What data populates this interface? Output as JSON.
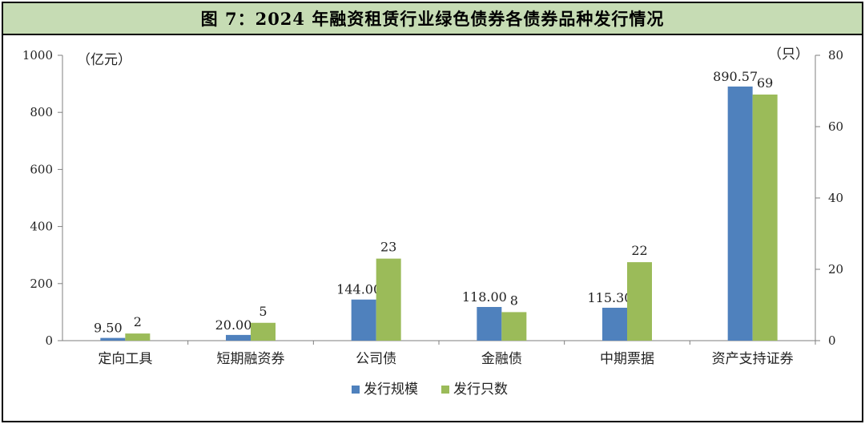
{
  "title": "图 7：2024 年融资租赁行业绿色债券各债券品种发行情况",
  "chart_data": {
    "type": "bar",
    "title": "图 7：2024 年融资租赁行业绿色债券各债券品种发行情况",
    "categories": [
      "定向工具",
      "短期融资券",
      "公司债",
      "金融债",
      "中期票据",
      "资产支持证券"
    ],
    "y_left": {
      "unit": "（亿元）",
      "min": 0,
      "max": 1000,
      "ticks": [
        0,
        200,
        400,
        600,
        800,
        1000
      ]
    },
    "y_right": {
      "unit": "（只）",
      "min": 0,
      "max": 80,
      "ticks": [
        0,
        20,
        40,
        60,
        80
      ]
    },
    "series": [
      {
        "name": "发行规模",
        "axis": "left",
        "color": "#4f81bd",
        "values": [
          9.5,
          20.0,
          144.0,
          118.0,
          115.3,
          890.57
        ],
        "labels": [
          "9.50",
          "20.00",
          "144.00",
          "118.00",
          "115.30",
          "890.57"
        ]
      },
      {
        "name": "发行只数",
        "axis": "right",
        "color": "#9bbb59",
        "values": [
          2,
          5,
          23,
          8,
          22,
          69
        ],
        "labels": [
          "2",
          "5",
          "23",
          "8",
          "22",
          "69"
        ]
      }
    ],
    "legend_position": "bottom",
    "grid": false
  }
}
